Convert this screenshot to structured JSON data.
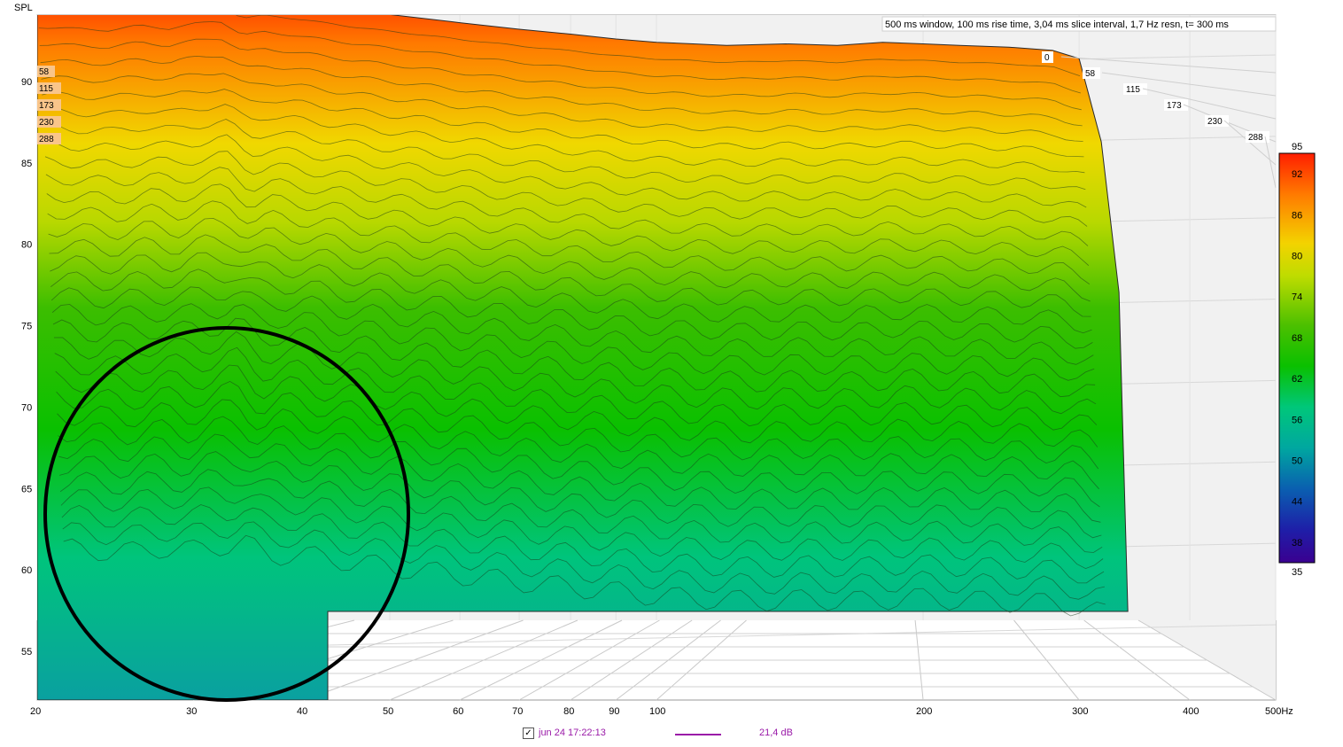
{
  "chart_data": {
    "type": "waterfall-3d",
    "ylabel": "SPL",
    "info": "500 ms window, 100 ms rise time, 3,04 ms slice interval, 1,7 Hz resn, t= 300 ms",
    "y_ticks": [
      "55",
      "60",
      "65",
      "70",
      "75",
      "80",
      "85",
      "90"
    ],
    "ylim": [
      52,
      94
    ],
    "x_scale": "log",
    "x_ticks": [
      "20",
      "30",
      "40",
      "50",
      "60",
      "70",
      "80",
      "90",
      "100",
      "200",
      "300",
      "400",
      "500Hz"
    ],
    "xlim": [
      20,
      500
    ],
    "time_ticks_ms": [
      "0",
      "58",
      "115",
      "173",
      "230",
      "288"
    ],
    "time_marks_left": [
      "58",
      "115",
      "173",
      "230",
      "288"
    ],
    "colorscale": {
      "min": "35",
      "max": "95",
      "ticks": [
        "92",
        "86",
        "80",
        "74",
        "68",
        "62",
        "56",
        "50",
        "44",
        "38"
      ],
      "colors": [
        "#ff1e00",
        "#ff7a00",
        "#f3d300",
        "#bedc00",
        "#4cc000",
        "#0ac000",
        "#00c77a",
        "#00a7a0",
        "#0a5fb0",
        "#1e1ea8",
        "#3a0090"
      ]
    },
    "series": [
      {
        "name": "jun 24 17:22:13",
        "level": "21,4 dB",
        "color": "#9a1aa8",
        "front_slice": {
          "freq_hz": [
            20,
            22,
            24,
            26,
            28,
            30,
            32,
            34,
            36,
            40,
            45,
            50,
            60,
            70,
            80,
            90,
            100,
            110,
            120,
            140,
            160,
            180,
            200,
            220,
            250,
            280,
            300
          ],
          "spl_db": [
            92.8,
            92.7,
            92.6,
            92.9,
            92.7,
            93.0,
            93.2,
            92.3,
            92.5,
            92.2,
            91.8,
            91.5,
            91.0,
            90.6,
            90.3,
            90.0,
            89.8,
            89.7,
            89.6,
            89.7,
            89.6,
            89.8,
            89.7,
            89.6,
            89.5,
            89.3,
            88.8
          ]
        }
      }
    ],
    "annotation": "circled low-frequency region"
  }
}
